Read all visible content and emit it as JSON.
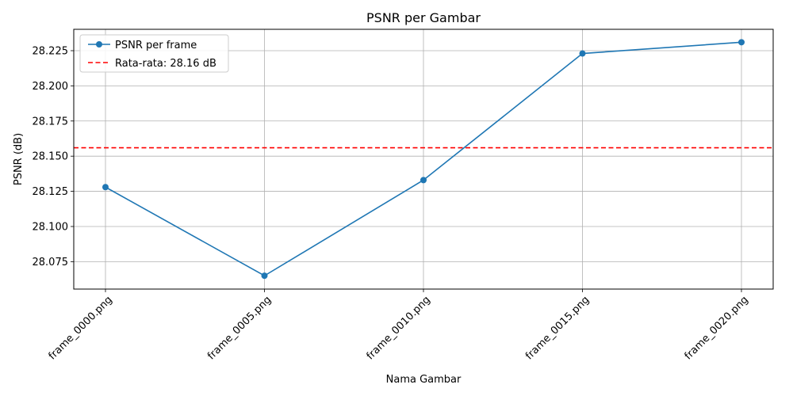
{
  "chart_data": {
    "type": "line",
    "title": "PSNR per Gambar",
    "xlabel": "Nama Gambar",
    "ylabel": "PSNR (dB)",
    "categories": [
      "frame_0000.png",
      "frame_0005.png",
      "frame_0010.png",
      "frame_0015.png",
      "frame_0020.png"
    ],
    "series": [
      {
        "name": "PSNR per frame",
        "values": [
          28.128,
          28.065,
          28.133,
          28.223,
          28.231
        ],
        "color": "#1f77b4"
      }
    ],
    "average_line": {
      "label": "Rata-rata: 28.16 dB",
      "value": 28.156,
      "color": "#ff0000"
    },
    "ylim": [
      28.0555,
      28.2402
    ],
    "yticks": [
      "28.075",
      "28.100",
      "28.125",
      "28.150",
      "28.175",
      "28.200",
      "28.225"
    ],
    "grid": true,
    "legend_position": "top-left"
  }
}
